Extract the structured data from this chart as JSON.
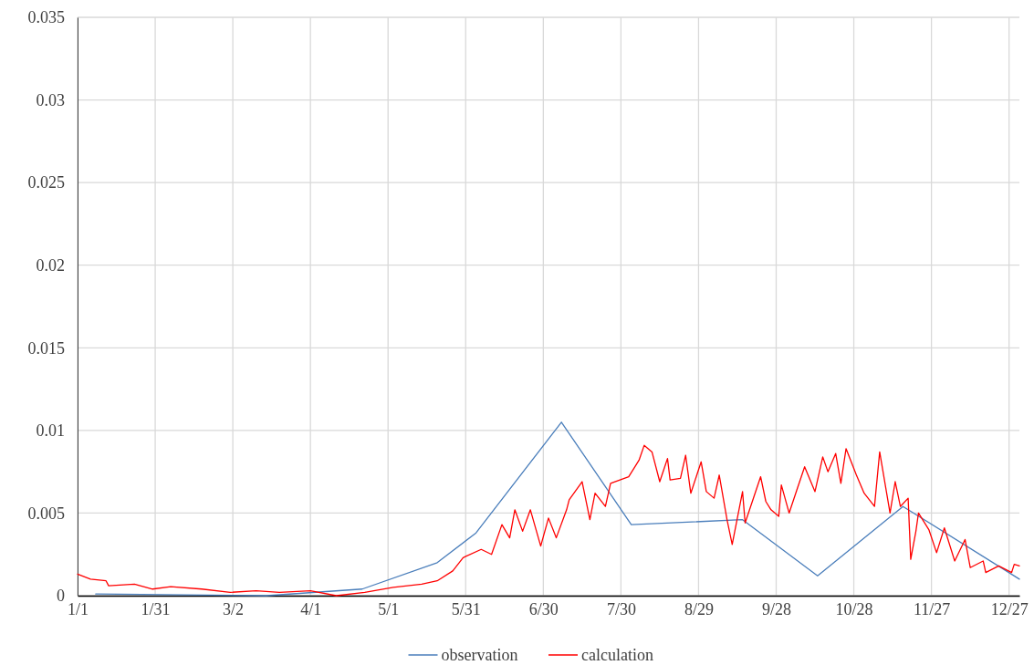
{
  "chart_data": {
    "type": "line",
    "xlim": [
      "--01-01",
      "--12-31"
    ],
    "xticks": [
      {
        "value": "--01-01",
        "label": "1/1"
      },
      {
        "value": "--01-31",
        "label": "1/31"
      },
      {
        "value": "--03-02",
        "label": "3/2"
      },
      {
        "value": "--04-01",
        "label": "4/1"
      },
      {
        "value": "--05-01",
        "label": "5/1"
      },
      {
        "value": "--05-31",
        "label": "5/31"
      },
      {
        "value": "--06-30",
        "label": "6/30"
      },
      {
        "value": "--07-30",
        "label": "7/30"
      },
      {
        "value": "--08-29",
        "label": "8/29"
      },
      {
        "value": "--09-28",
        "label": "9/28"
      },
      {
        "value": "--10-28",
        "label": "10/28"
      },
      {
        "value": "--11-27",
        "label": "11/27"
      },
      {
        "value": "--12-27",
        "label": "12/27"
      }
    ],
    "ylim": [
      0,
      0.035
    ],
    "yticks": [
      0,
      0.005,
      0.01,
      0.015,
      0.02,
      0.025,
      0.03,
      0.035
    ],
    "grid": true,
    "legend": "bottom",
    "line_style": "solid",
    "marker": "none",
    "series": [
      {
        "name": "observation",
        "color": "#4a7ebb",
        "x": [
          "--01-08",
          "--03-15",
          "--04-21",
          "--05-20",
          "--06-04",
          "--07-07",
          "--08-03",
          "--09-15",
          "--10-14",
          "--11-16",
          "--12-31"
        ],
        "values": [
          0.0001,
          0,
          0.0004,
          0.002,
          0.0038,
          0.0105,
          0.0043,
          0.0046,
          0.0012,
          0.0054,
          0.001
        ]
      },
      {
        "name": "calculation",
        "color": "#ff0000",
        "x": [
          "--01-01",
          "--01-06",
          "--01-12",
          "--01-13",
          "--01-23",
          "--01-30",
          "--02-06",
          "--02-18",
          "--03-01",
          "--03-11",
          "--03-20",
          "--04-01",
          "--04-11",
          "--04-22",
          "--05-03",
          "--05-14",
          "--05-20",
          "--05-26",
          "--05-30",
          "--06-06",
          "--06-10",
          "--06-14",
          "--06-17",
          "--06-19",
          "--06-22",
          "--06-25",
          "--06-29",
          "--07-02",
          "--07-05",
          "--07-09",
          "--07-10",
          "--07-15",
          "--07-18",
          "--07-20",
          "--07-24",
          "--07-26",
          "--08-02",
          "--08-06",
          "--08-08",
          "--08-11",
          "--08-14",
          "--08-17",
          "--08-18",
          "--08-22",
          "--08-24",
          "--08-26",
          "--08-30",
          "--09-01",
          "--09-04",
          "--09-06",
          "--09-09",
          "--09-11",
          "--09-13",
          "--09-15",
          "--09-16",
          "--09-22",
          "--09-24",
          "--09-26",
          "--09-29",
          "--09-30",
          "--10-03",
          "--10-06",
          "--10-09",
          "--10-13",
          "--10-16",
          "--10-18",
          "--10-21",
          "--10-23",
          "--10-25",
          "--10-29",
          "--11-01",
          "--11-05",
          "--11-07",
          "--11-11",
          "--11-13",
          "--11-15",
          "--11-18",
          "--11-19",
          "--11-21",
          "--11-22",
          "--11-26",
          "--11-29",
          "--12-02",
          "--12-06",
          "--12-10",
          "--12-12",
          "--12-17",
          "--12-18",
          "--12-23",
          "--12-28",
          "--12-29",
          "--12-31"
        ],
        "values": [
          0.0013,
          0.001,
          0.0009,
          0.0006,
          0.0007,
          0.0004,
          0.00055,
          0.0004,
          0.0002,
          0.0003,
          0.0002,
          0.0003,
          0,
          0.0002,
          0.0005,
          0.0007,
          0.0009,
          0.0015,
          0.0023,
          0.0028,
          0.0025,
          0.0043,
          0.0035,
          0.0052,
          0.0039,
          0.0052,
          0.003,
          0.0047,
          0.0035,
          0.0052,
          0.0058,
          0.0069,
          0.0046,
          0.0062,
          0.0054,
          0.0068,
          0.0072,
          0.0082,
          0.0091,
          0.0087,
          0.0069,
          0.0083,
          0.007,
          0.0071,
          0.0085,
          0.0062,
          0.0081,
          0.0063,
          0.0059,
          0.0073,
          0.0046,
          0.0031,
          0.0047,
          0.0063,
          0.0044,
          0.0072,
          0.0057,
          0.0052,
          0.0048,
          0.0067,
          0.005,
          0.0064,
          0.0078,
          0.0063,
          0.0084,
          0.0075,
          0.0086,
          0.0068,
          0.0089,
          0.0073,
          0.0062,
          0.0054,
          0.0087,
          0.005,
          0.0069,
          0.0054,
          0.0059,
          0.0022,
          0.0039,
          0.005,
          0.004,
          0.0026,
          0.0041,
          0.0021,
          0.0034,
          0.0017,
          0.0021,
          0.0014,
          0.0018,
          0.0014,
          0.0019,
          0.0018
        ]
      }
    ]
  }
}
